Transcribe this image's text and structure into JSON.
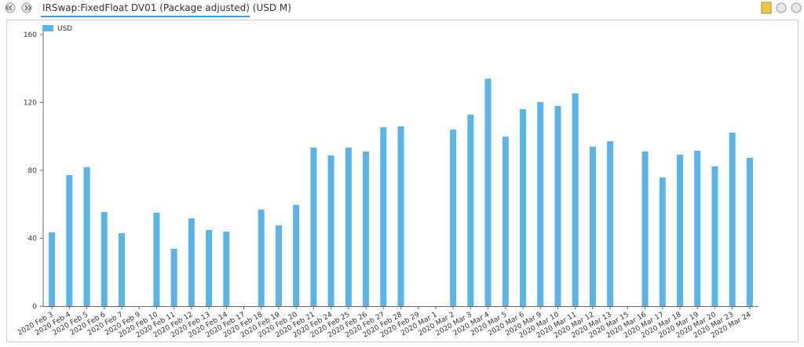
{
  "chart_data": {
    "type": "bar",
    "title": "IRSwap:FixedFloat DV01 (Package adjusted) (USD M)",
    "categories": [
      "2020 Feb 3",
      "2020 Feb 4",
      "2020 Feb 5",
      "2020 Feb 6",
      "2020 Feb 7",
      "2020 Feb 9",
      "2020 Feb 10",
      "2020 Feb 11",
      "2020 Feb 12",
      "2020 Feb 13",
      "2020 Feb 14",
      "2020 Feb 17",
      "2020 Feb 18",
      "2020 Feb 19",
      "2020 Feb 20",
      "2020 Feb 21",
      "2020 Feb 24",
      "2020 Feb 25",
      "2020 Feb 26",
      "2020 Feb 27",
      "2020 Feb 28",
      "2020 Feb 29",
      "2020 Mar 1",
      "2020 Mar 2",
      "2020 Mar 3",
      "2020 Mar 4",
      "2020 Mar 5",
      "2020 Mar 6",
      "2020 Mar 9",
      "2020 Mar 10",
      "2020 Mar 11",
      "2020 Mar 12",
      "2020 Mar 13",
      "2020 Mar 15",
      "2020 Mar 16",
      "2020 Mar 17",
      "2020 Mar 18",
      "2020 Mar 19",
      "2020 Mar 20",
      "2020 Mar 23",
      "2020 Mar 24"
    ],
    "series": [
      {
        "name": "USD",
        "color": "#5ab4e8",
        "values": [
          43.5,
          77.2,
          81.9,
          55.5,
          43,
          null,
          55,
          33.8,
          51.8,
          44.9,
          43.9,
          null,
          56.9,
          47.6,
          59.7,
          93.4,
          88.8,
          93.4,
          91.1,
          105.4,
          105.9,
          null,
          null,
          104,
          112.8,
          134,
          99.9,
          116,
          120.2,
          117.9,
          125.3,
          93.9,
          97.1,
          null,
          91.1,
          75.8,
          89.2,
          91.6,
          82.3,
          102.2,
          87.4
        ]
      }
    ],
    "ylim": [
      0,
      160
    ],
    "yticks": [
      0,
      40,
      80,
      120,
      160
    ],
    "grid": false,
    "legend": "top-left"
  }
}
